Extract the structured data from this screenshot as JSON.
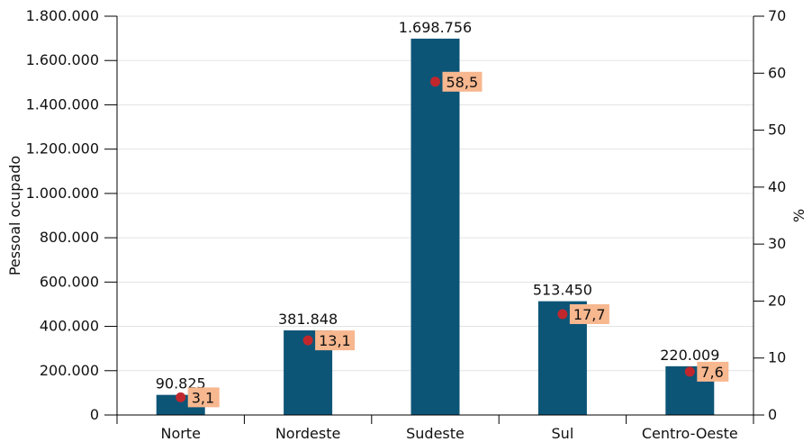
{
  "chart_data": {
    "type": "bar",
    "categories": [
      "Norte",
      "Nordeste",
      "Sudeste",
      "Sul",
      "Centro-Oeste"
    ],
    "series": [
      {
        "values": [
          90825,
          381848,
          1698756,
          513450,
          220009
        ],
        "value_labels": [
          "90.825",
          "381.848",
          "1.698.756",
          "513.450",
          "220.009"
        ],
        "axis": "left",
        "color": "#0d5577"
      },
      {
        "values": [
          3.1,
          13.1,
          58.5,
          17.7,
          7.6
        ],
        "value_labels": [
          "3,1",
          "13,1",
          "58,5",
          "17,7",
          "7,6"
        ],
        "axis": "right",
        "marker": "dot",
        "color": "#c0272d",
        "label_bg": "#f7b78f"
      }
    ],
    "ylabel": "Pessoal ocupado",
    "ylabel_right": "%",
    "ylim": [
      0,
      1800000
    ],
    "ylim_right": [
      0,
      70
    ],
    "yticks": [
      0,
      200000,
      400000,
      600000,
      800000,
      1000000,
      1200000,
      1400000,
      1600000,
      1800000
    ],
    "ytick_labels": [
      "0",
      "200.000",
      "400.000",
      "600.000",
      "800.000",
      "1.000.000",
      "1.200.000",
      "1.400.000",
      "1.600.000",
      "1.800.000"
    ],
    "yticks_right": [
      0,
      10,
      20,
      30,
      40,
      50,
      60,
      70
    ],
    "ytick_labels_right": [
      "0",
      "10",
      "20",
      "30",
      "40",
      "50",
      "60",
      "70"
    ],
    "grid": true,
    "gridline_color": "#e3e3e3"
  }
}
